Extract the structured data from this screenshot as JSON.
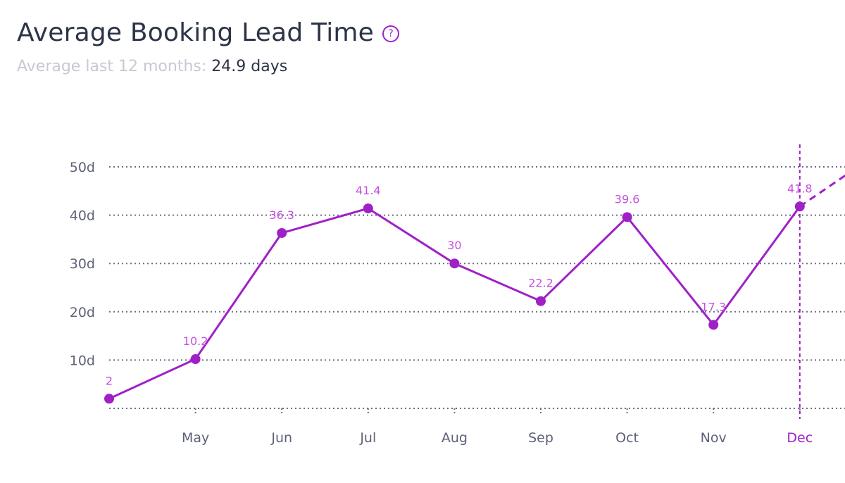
{
  "header": {
    "title": "Average Booking Lead Time",
    "help_icon": "question-circle-icon",
    "subtitle_label": "Average last 12 months:",
    "subtitle_value": "24.9 days"
  },
  "colors": {
    "line": "#a020c8",
    "label": "#c44fe0",
    "grid": "#6b6f85",
    "text": "#5d6278"
  },
  "chart_data": {
    "type": "line",
    "x": [
      "",
      "May",
      "Jun",
      "Jul",
      "Aug",
      "Sep",
      "Oct",
      "Nov",
      "Dec"
    ],
    "series": [
      {
        "values": [
          2,
          10.2,
          36.3,
          41.4,
          30,
          22.2,
          39.6,
          17.3,
          41.8
        ]
      }
    ],
    "data_labels": [
      "2",
      "10.2",
      "36.3",
      "41.4",
      "30",
      "22.2",
      "39.6",
      "17.3",
      "41.8"
    ],
    "yticks": [
      {
        "value": 10,
        "label": "10d"
      },
      {
        "value": 20,
        "label": "20d"
      },
      {
        "value": 30,
        "label": "30d"
      },
      {
        "value": 40,
        "label": "40d"
      },
      {
        "value": 50,
        "label": "50d"
      }
    ],
    "ylim": [
      0,
      50
    ],
    "highlighted_category": "Dec",
    "projection": {
      "value": 48.5
    },
    "grid": true
  }
}
